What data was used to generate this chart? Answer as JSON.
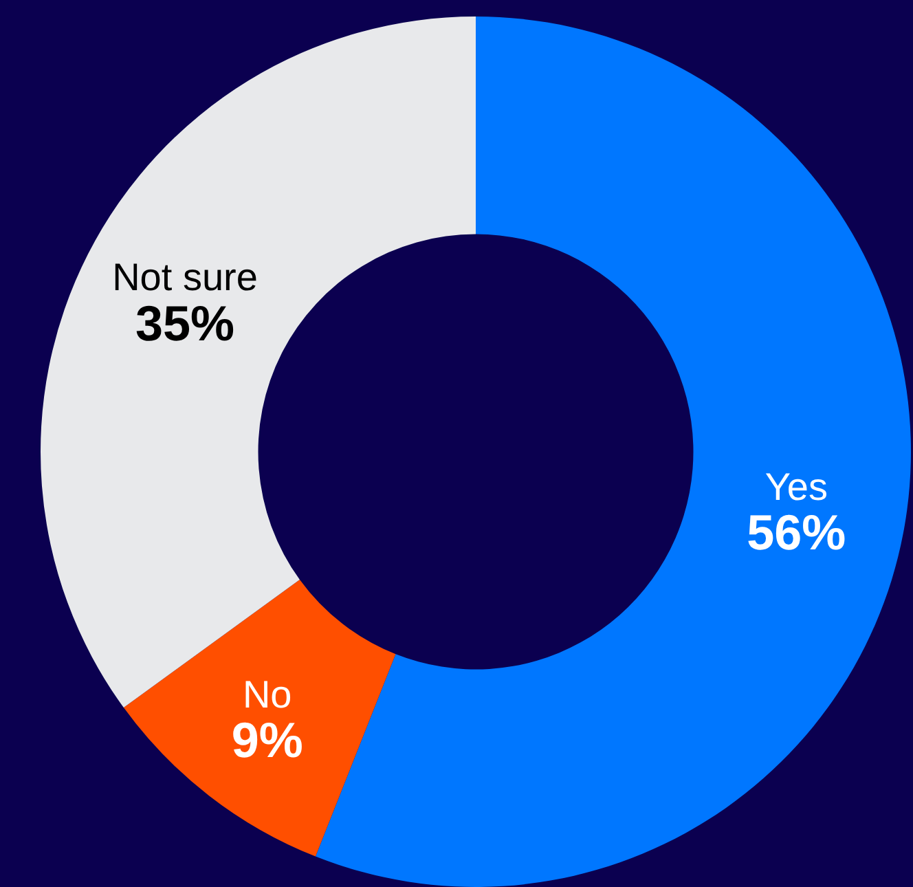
{
  "chart_data": {
    "type": "donut",
    "categories": [
      "Yes",
      "No",
      "Not sure"
    ],
    "values": [
      56,
      9,
      35
    ],
    "colors": [
      "#0077ff",
      "#ff4f00",
      "#e8e9eb"
    ],
    "value_labels": [
      "56%",
      "9%",
      "35%"
    ],
    "legend": false
  }
}
